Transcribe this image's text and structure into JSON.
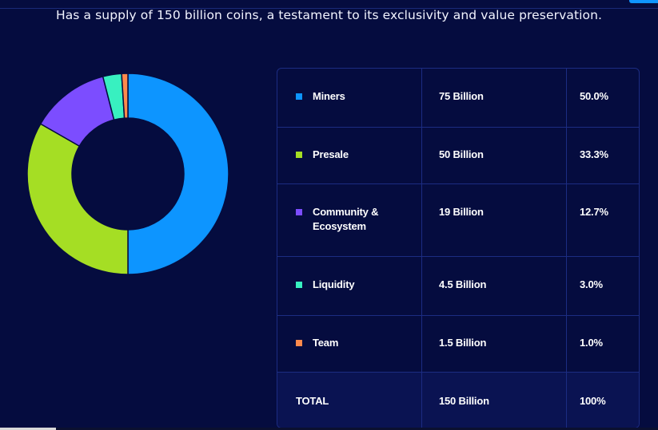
{
  "subtitle": "Has a supply of 150 billion coins, a testament to its exclusivity and value preservation.",
  "chart_data": {
    "type": "pie",
    "donut": true,
    "categories": [
      "Miners",
      "Presale",
      "Community & Ecosystem",
      "Liquidity",
      "Team"
    ],
    "values": [
      50.0,
      33.3,
      12.7,
      3.0,
      1.0
    ],
    "amounts": [
      "75 Billion",
      "50 Billion",
      "19 Billion",
      "4.5 Billion",
      "1.5 Billion"
    ],
    "percents": [
      "50.0%",
      "33.3%",
      "12.7%",
      "3.0%",
      "1.0%"
    ],
    "colors": [
      "#0d95ff",
      "#a5de24",
      "#7c4dff",
      "#38f0c0",
      "#ff8a4c"
    ],
    "title": "",
    "legend": "table"
  },
  "table": {
    "rows": [
      {
        "label": "Miners",
        "amount": "75 Billion",
        "percent": "50.0%"
      },
      {
        "label": "Presale",
        "amount": "50 Billion",
        "percent": "33.3%"
      },
      {
        "label_line1": "Community &",
        "label_line2": "Ecosystem",
        "amount": "19 Billion",
        "percent": "12.7%"
      },
      {
        "label": "Liquidity",
        "amount": "4.5 Billion",
        "percent": "3.0%"
      },
      {
        "label": "Team",
        "amount": "1.5 Billion",
        "percent": "1.0%"
      }
    ],
    "total": {
      "label": "TOTAL",
      "amount": "150 Billion",
      "percent": "100%"
    }
  }
}
